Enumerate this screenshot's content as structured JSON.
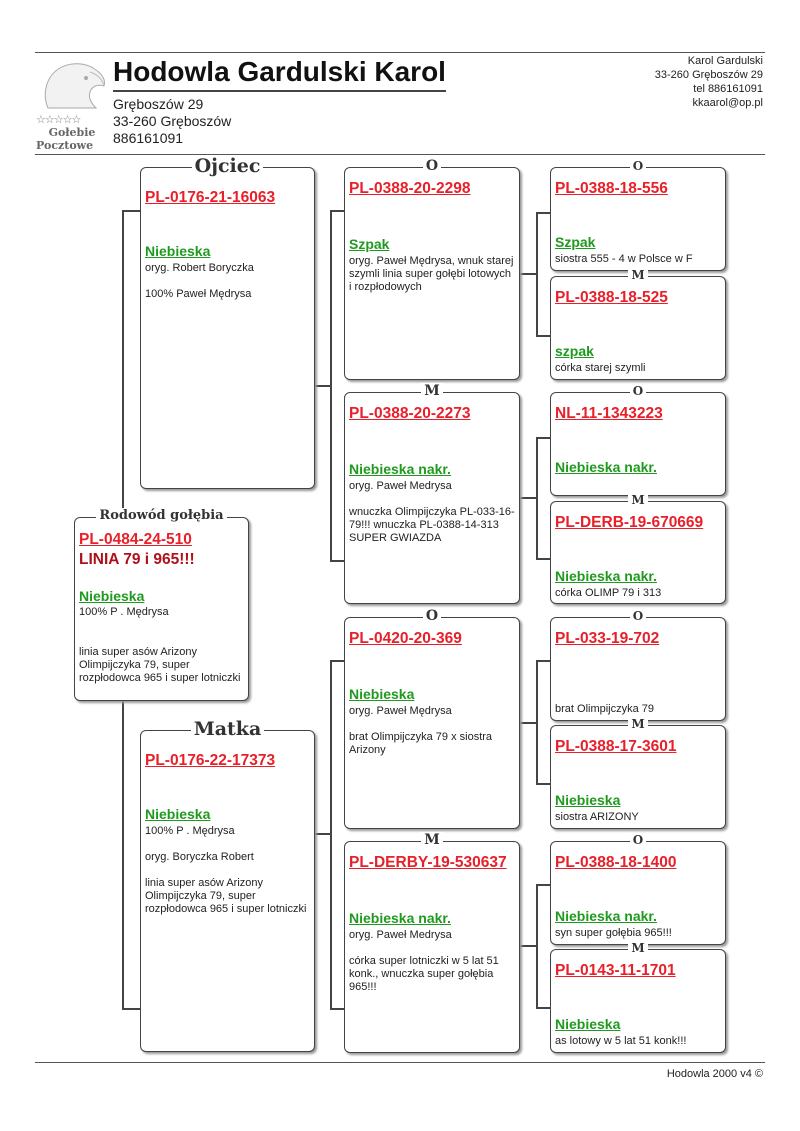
{
  "header": {
    "title": "Hodowla Gardulski Karol",
    "address_lines": [
      "Gręboszów 29",
      "33-260 Gręboszów",
      "886161091"
    ],
    "contact_lines": [
      "Karol Gardulski",
      "33-260 Gręboszów 29",
      "tel 886161091",
      "kkaarol@op.pl"
    ],
    "logo": {
      "stars": "☆☆☆☆☆",
      "line1": "Gołebie",
      "line2": "Pocztowe",
      "icon": "pigeon-head-icon"
    }
  },
  "colors": {
    "ring": "#e8202a",
    "color_text": "#1f9a1f",
    "subject_line2": "#b0101a"
  },
  "subject": {
    "label": "Rodowód gołębia",
    "ring": "PL-0484-24-510",
    "line2": "LINIA 79 i 965!!!",
    "color": "Niebieska",
    "note1": "100% P . Mędrysa",
    "note2": "linia super asów Arizony Olimpijczyka 79, super rozpłodowca 965 i super lotniczki"
  },
  "pedigree": [
    {
      "label": "Ojciec",
      "ring": "PL-0176-21-16063",
      "color": "Niebieska",
      "note": "oryg. Robert Boryczka\n\n100% Paweł Mędrysa"
    },
    {
      "label": "Matka",
      "ring": "PL-0176-22-17373",
      "color": "Niebieska",
      "note": "100% P . Mędrysa\n\noryg. Boryczka Robert\n\nlinia super asów Arizony Olimpijczyka 79, super rozpłodowca 965 i super lotniczki"
    },
    {
      "label": "O",
      "ring": "PL-0388-20-2298",
      "color": "Szpak",
      "note": "oryg. Paweł Mędrysa, wnuk starej szymli linia super gołębi lotowych i rozpłodowych"
    },
    {
      "label": "M",
      "ring": "PL-0388-20-2273",
      "color": "Niebieska nakr.",
      "note": "oryg. Paweł Medrysa\n\nwnuczka Olimpijczyka PL-033-16-79!!! wnuczka PL-0388-14-313 SUPER GWIAZDA"
    },
    {
      "label": "O",
      "ring": "PL-0420-20-369",
      "color": "Niebieska",
      "note": "oryg. Paweł Mędrysa\n\nbrat Olimpijczyka 79 x siostra Arizony"
    },
    {
      "label": "M",
      "ring": "PL-DERBY-19-530637",
      "color": "Niebieska nakr.",
      "note": "oryg. Paweł Medrysa\n\ncórka super lotniczki w 5 lat 51 konk., wnuczka super gołębia 965!!!"
    },
    {
      "label": "O",
      "ring": "PL-0388-18-556",
      "color": "Szpak",
      "note": "siostra 555 - 4 w Polsce w F"
    },
    {
      "label": "M",
      "ring": "PL-0388-18-525",
      "color": "szpak",
      "note": "córka starej szymli"
    },
    {
      "label": "O",
      "ring": "NL-11-1343223",
      "color": "Niebieska nakr.",
      "note": ""
    },
    {
      "label": "M",
      "ring": "PL-DERB-19-670669",
      "color": "Niebieska nakr.",
      "note": "córka OLIMP 79 i 313"
    },
    {
      "label": "O",
      "ring": "PL-033-19-702",
      "color": "",
      "note": "brat Olimpijczyka 79"
    },
    {
      "label": "M",
      "ring": "PL-0388-17-3601",
      "color": "Niebieska",
      "note": "siostra ARIZONY"
    },
    {
      "label": "O",
      "ring": "PL-0388-18-1400",
      "color": "Niebieska nakr.",
      "note": "syn super gołębia 965!!!"
    },
    {
      "label": "M",
      "ring": "PL-0143-11-1701",
      "color": "Niebieska",
      "note": "as lotowy w 5 lat 51 konk!!!"
    }
  ],
  "footer": "Hodowla 2000 v4 ©"
}
